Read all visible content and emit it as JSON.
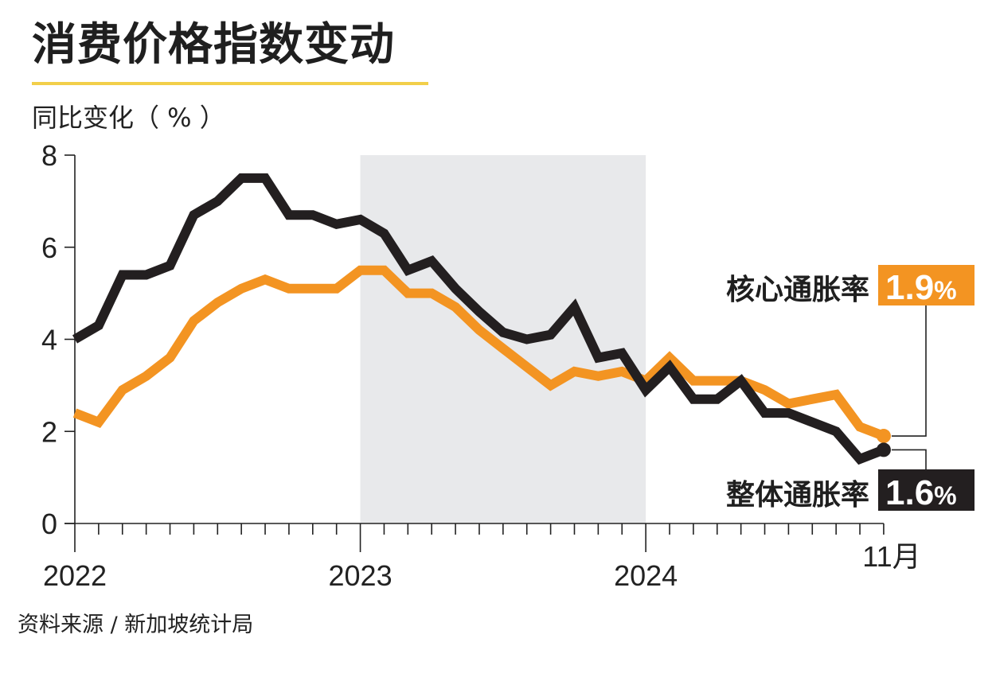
{
  "header": {
    "title": "消费价格指数变动",
    "unit_label": "同比变化（ % ）"
  },
  "footer": {
    "source": "资料来源 / 新加坡统计局"
  },
  "colors": {
    "headline": "#231f20",
    "core": "#f39422",
    "highlight_band": "#e8e9eb",
    "title_rule": "#f2cf4a",
    "axis": "#222222"
  },
  "chart_data": {
    "type": "line",
    "title": "消费价格指数变动",
    "ylabel": "同比变化（ % ）",
    "xlabel": "",
    "ylim": [
      0,
      8
    ],
    "yticks": [
      0,
      2,
      4,
      6,
      8
    ],
    "x_start": "2022-01",
    "x_end": "2024-11",
    "x_tick_labels": [
      {
        "label": "2022",
        "month_index": 0
      },
      {
        "label": "2023",
        "month_index": 12
      },
      {
        "label": "2024",
        "month_index": 24
      },
      {
        "label": "11月",
        "month_index": 34
      }
    ],
    "shaded_period": {
      "from_month_index": 12,
      "to_month_index": 24,
      "label": "2023"
    },
    "grid": false,
    "legend": "direct-labels-right",
    "series": [
      {
        "name": "整体通胀率",
        "key": "headline",
        "values": [
          4.0,
          4.3,
          5.4,
          5.4,
          5.6,
          6.7,
          7.0,
          7.5,
          7.5,
          6.7,
          6.7,
          6.5,
          6.6,
          6.3,
          5.5,
          5.7,
          5.1,
          4.6,
          4.15,
          4.0,
          4.1,
          4.7,
          3.6,
          3.7,
          2.9,
          3.4,
          2.7,
          2.7,
          3.1,
          2.4,
          2.4,
          2.2,
          2.0,
          1.4,
          1.6
        ],
        "latest_label": "1.6",
        "latest_suffix": "%"
      },
      {
        "name": "核心通胀率",
        "key": "core",
        "values": [
          2.4,
          2.2,
          2.9,
          3.2,
          3.6,
          4.4,
          4.8,
          5.1,
          5.3,
          5.1,
          5.1,
          5.1,
          5.5,
          5.5,
          5.0,
          5.0,
          4.7,
          4.2,
          3.8,
          3.4,
          3.0,
          3.3,
          3.2,
          3.3,
          3.1,
          3.6,
          3.1,
          3.1,
          3.1,
          2.9,
          2.6,
          2.7,
          2.8,
          2.1,
          1.9
        ],
        "latest_label": "1.9",
        "latest_suffix": "%"
      }
    ]
  }
}
